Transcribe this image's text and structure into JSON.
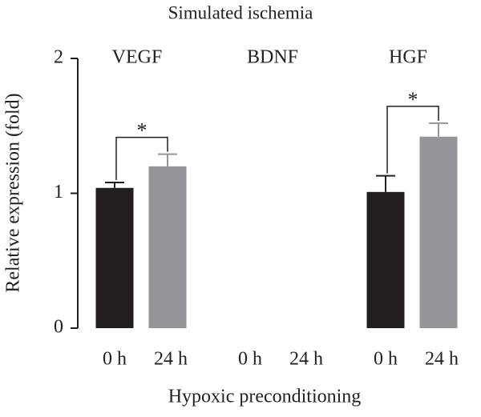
{
  "chart_data": {
    "type": "bar",
    "title": "Simulated ischemia",
    "x_label": "Hypoxic preconditioning",
    "y_label": "Relative expression (fold)",
    "categories": [
      "VEGF",
      "BDNF",
      "HGF"
    ],
    "series": [
      {
        "name": "0 h",
        "color": "#231f20",
        "values": [
          1.04,
          null,
          1.01
        ],
        "errors": [
          0.04,
          null,
          0.12
        ]
      },
      {
        "name": "24 h",
        "color": "#939598",
        "values": [
          1.2,
          null,
          1.42
        ],
        "errors": [
          0.09,
          null,
          0.1
        ]
      }
    ],
    "annotations": [
      "*",
      "*"
    ],
    "ylim": [
      0,
      2
    ],
    "yticks": [
      0,
      1,
      2
    ]
  }
}
